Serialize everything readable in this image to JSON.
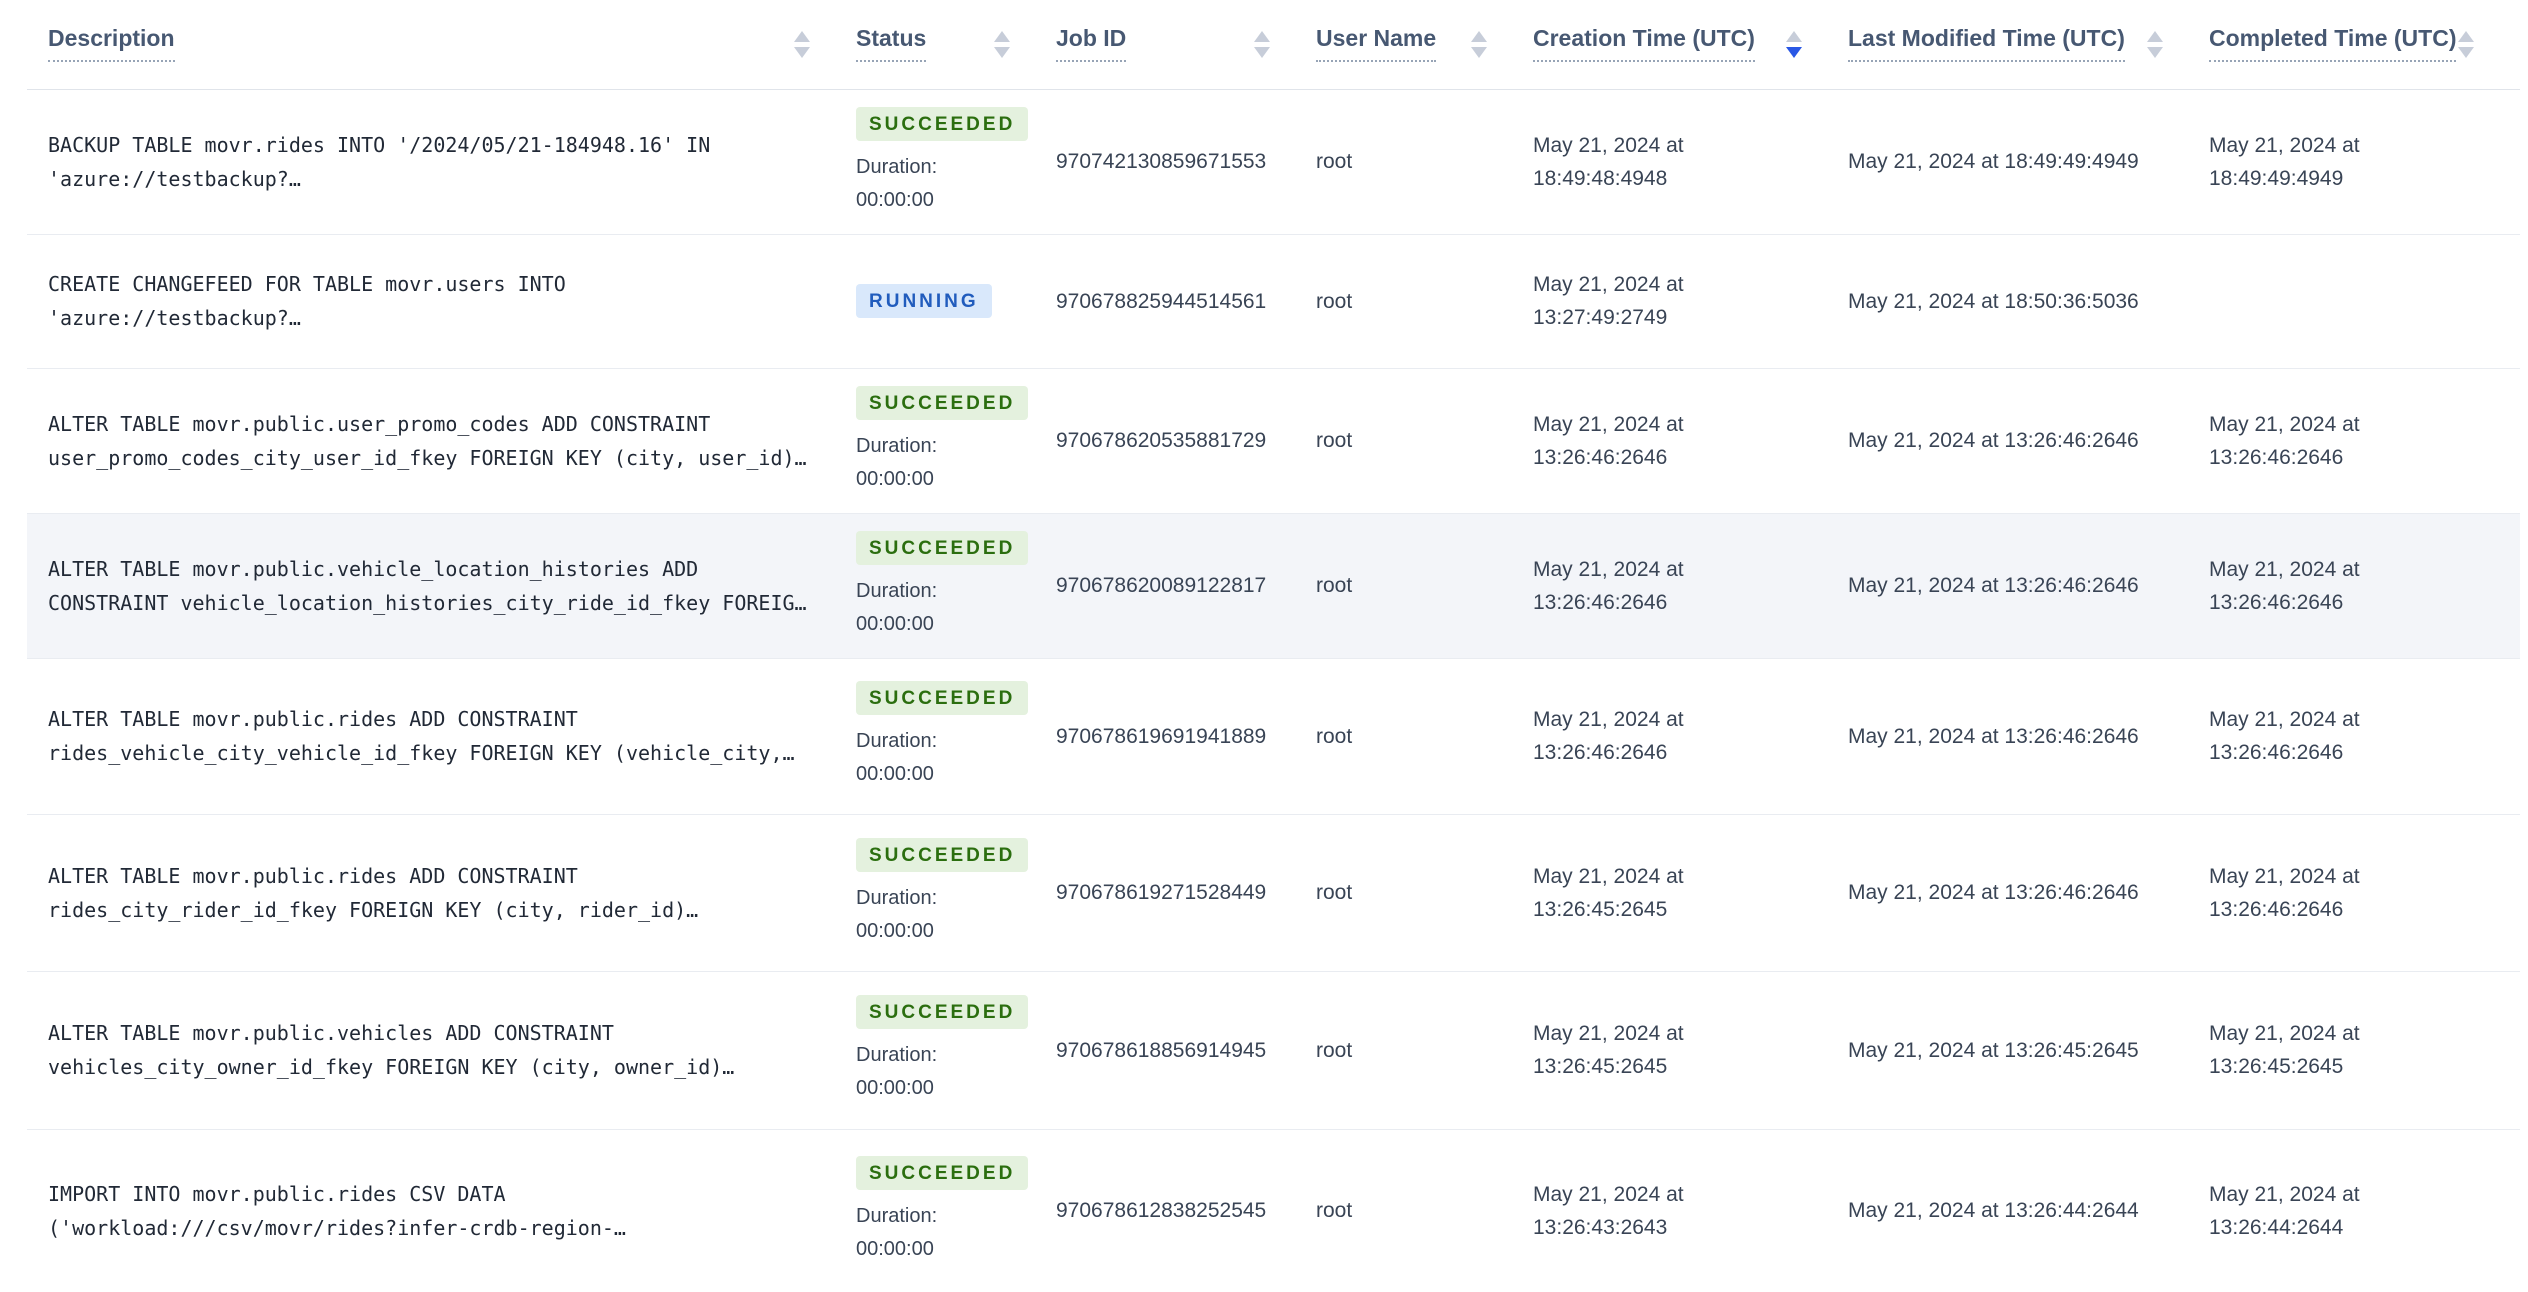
{
  "table": {
    "columns": [
      {
        "label": "Description",
        "sort": "none"
      },
      {
        "label": "Status",
        "sort": "none"
      },
      {
        "label": "Job ID",
        "sort": "none"
      },
      {
        "label": "User Name",
        "sort": "none"
      },
      {
        "label": "Creation Time (UTC)",
        "sort": "desc"
      },
      {
        "label": "Last Modified Time (UTC)",
        "sort": "none"
      },
      {
        "label": "Completed Time (UTC)",
        "sort": "none"
      }
    ],
    "rows": [
      {
        "desc_line1": "BACKUP TABLE movr.rides INTO '/2024/05/21-184948.16' IN",
        "desc_line2": "'azure://testbackup?…",
        "status": "SUCCEEDED",
        "duration_label": "Duration:",
        "duration_value": "00:00:00",
        "job_id": "970742130859671553",
        "user_name": "root",
        "creation_time": "May 21, 2024 at 18:49:48:4948",
        "last_modified_time": "May 21, 2024 at 18:49:49:4949",
        "completed_time": "May 21, 2024 at 18:49:49:4949"
      },
      {
        "desc_line1": "CREATE CHANGEFEED FOR TABLE movr.users INTO",
        "desc_line2": "'azure://testbackup?…",
        "status": "RUNNING",
        "duration_label": "",
        "duration_value": "",
        "job_id": "970678825944514561",
        "user_name": "root",
        "creation_time": "May 21, 2024 at 13:27:49:2749",
        "last_modified_time": "May 21, 2024 at 18:50:36:5036",
        "completed_time": ""
      },
      {
        "desc_line1": "ALTER TABLE movr.public.user_promo_codes ADD CONSTRAINT",
        "desc_line2": "user_promo_codes_city_user_id_fkey FOREIGN KEY (city, user_id)…",
        "status": "SUCCEEDED",
        "duration_label": "Duration:",
        "duration_value": "00:00:00",
        "job_id": "970678620535881729",
        "user_name": "root",
        "creation_time": "May 21, 2024 at 13:26:46:2646",
        "last_modified_time": "May 21, 2024 at 13:26:46:2646",
        "completed_time": "May 21, 2024 at 13:26:46:2646"
      },
      {
        "desc_line1": "ALTER TABLE movr.public.vehicle_location_histories ADD",
        "desc_line2": "CONSTRAINT vehicle_location_histories_city_ride_id_fkey FOREIG…",
        "status": "SUCCEEDED",
        "duration_label": "Duration:",
        "duration_value": "00:00:00",
        "job_id": "970678620089122817",
        "user_name": "root",
        "creation_time": "May 21, 2024 at 13:26:46:2646",
        "last_modified_time": "May 21, 2024 at 13:26:46:2646",
        "completed_time": "May 21, 2024 at 13:26:46:2646"
      },
      {
        "desc_line1": "ALTER TABLE movr.public.rides ADD CONSTRAINT",
        "desc_line2": "rides_vehicle_city_vehicle_id_fkey FOREIGN KEY (vehicle_city,…",
        "status": "SUCCEEDED",
        "duration_label": "Duration:",
        "duration_value": "00:00:00",
        "job_id": "970678619691941889",
        "user_name": "root",
        "creation_time": "May 21, 2024 at 13:26:46:2646",
        "last_modified_time": "May 21, 2024 at 13:26:46:2646",
        "completed_time": "May 21, 2024 at 13:26:46:2646"
      },
      {
        "desc_line1": "ALTER TABLE movr.public.rides ADD CONSTRAINT",
        "desc_line2": "rides_city_rider_id_fkey FOREIGN KEY (city, rider_id)…",
        "status": "SUCCEEDED",
        "duration_label": "Duration:",
        "duration_value": "00:00:00",
        "job_id": "970678619271528449",
        "user_name": "root",
        "creation_time": "May 21, 2024 at 13:26:45:2645",
        "last_modified_time": "May 21, 2024 at 13:26:46:2646",
        "completed_time": "May 21, 2024 at 13:26:46:2646"
      },
      {
        "desc_line1": "ALTER TABLE movr.public.vehicles ADD CONSTRAINT",
        "desc_line2": "vehicles_city_owner_id_fkey FOREIGN KEY (city, owner_id)…",
        "status": "SUCCEEDED",
        "duration_label": "Duration:",
        "duration_value": "00:00:00",
        "job_id": "970678618856914945",
        "user_name": "root",
        "creation_time": "May 21, 2024 at 13:26:45:2645",
        "last_modified_time": "May 21, 2024 at 13:26:45:2645",
        "completed_time": "May 21, 2024 at 13:26:45:2645"
      },
      {
        "desc_line1": "IMPORT INTO movr.public.rides CSV DATA",
        "desc_line2": "('workload:///csv/movr/rides?infer-crdb-region-…",
        "status": "SUCCEEDED",
        "duration_label": "Duration:",
        "duration_value": "00:00:00",
        "job_id": "970678612838252545",
        "user_name": "root",
        "creation_time": "May 21, 2024 at 13:26:43:2643",
        "last_modified_time": "May 21, 2024 at 13:26:44:2644",
        "completed_time": "May 21, 2024 at 13:26:44:2644"
      }
    ]
  },
  "colors": {
    "succeeded_text": "#2b6e0f",
    "succeeded_bg": "#e4f1de",
    "running_text": "#215cbd",
    "running_bg": "#d9e8fb",
    "sort_active": "#2957e5"
  }
}
